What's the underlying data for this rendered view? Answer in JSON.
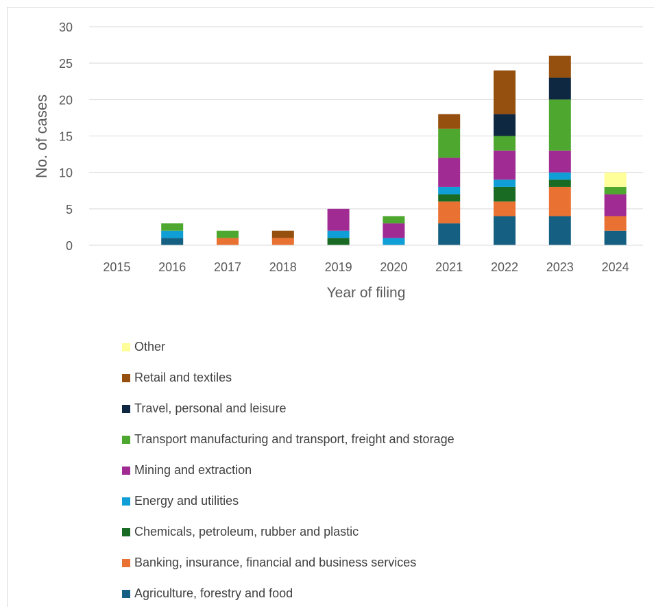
{
  "chart_data": {
    "type": "bar",
    "stacked": true,
    "title": "",
    "xlabel": "Year of filing",
    "ylabel": "No. of cases",
    "ylim": [
      0,
      30
    ],
    "yticks": [
      0,
      5,
      10,
      15,
      20,
      25,
      30
    ],
    "grid": true,
    "legend_position": "bottom",
    "categories": [
      "2015",
      "2016",
      "2017",
      "2018",
      "2019",
      "2020",
      "2021",
      "2022",
      "2023",
      "2024"
    ],
    "series": [
      {
        "name": "Agriculture, forestry and food",
        "color": "#156082",
        "values": [
          0,
          1,
          0,
          0,
          0,
          0,
          3,
          4,
          4,
          2
        ]
      },
      {
        "name": "Banking, insurance, financial and business services",
        "color": "#e97132",
        "values": [
          0,
          0,
          1,
          1,
          0,
          0,
          3,
          2,
          4,
          2
        ]
      },
      {
        "name": "Chemicals, petroleum, rubber and plastic",
        "color": "#196b24",
        "values": [
          0,
          0,
          0,
          0,
          1,
          0,
          1,
          2,
          1,
          0
        ]
      },
      {
        "name": "Energy and utilities",
        "color": "#0f9ed5",
        "values": [
          0,
          1,
          0,
          0,
          1,
          1,
          1,
          1,
          1,
          0
        ]
      },
      {
        "name": "Mining and extraction",
        "color": "#a02b93",
        "values": [
          0,
          0,
          0,
          0,
          3,
          2,
          4,
          4,
          3,
          3
        ]
      },
      {
        "name": "Transport manufacturing and transport, freight and storage",
        "color": "#4ea72e",
        "values": [
          0,
          1,
          1,
          0,
          0,
          1,
          4,
          2,
          7,
          1
        ]
      },
      {
        "name": "Travel, personal and leisure",
        "color": "#0e2841",
        "values": [
          0,
          0,
          0,
          0,
          0,
          0,
          0,
          3,
          3,
          0
        ]
      },
      {
        "name": "Retail and textiles",
        "color": "#954f0f",
        "values": [
          0,
          0,
          0,
          1,
          0,
          0,
          2,
          6,
          3,
          0
        ]
      },
      {
        "name": "Other",
        "color": "#ffff99",
        "values": [
          0,
          0,
          0,
          0,
          0,
          0,
          0,
          0,
          0,
          2
        ]
      }
    ]
  }
}
